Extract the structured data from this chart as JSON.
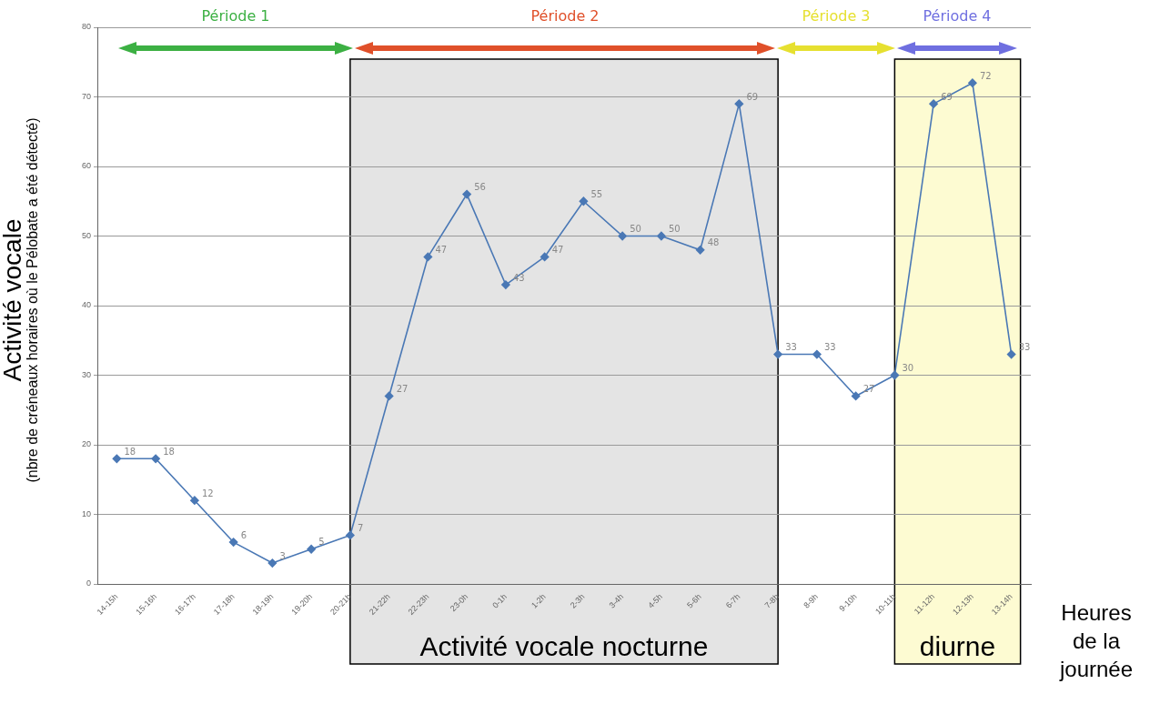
{
  "chart_data": {
    "type": "line",
    "ylabel": "Activité vocale",
    "subtitle": "(nbre de créneaux horaires où le Pélobate a été détecté)",
    "xlabel": "Heures de la journée",
    "categories": [
      "14-15h",
      "15-16h",
      "16-17h",
      "17-18h",
      "18-19h",
      "19-20h",
      "20-21h",
      "21-22h",
      "22-23h",
      "23-0h",
      "0-1h",
      "1-2h",
      "2-3h",
      "3-4h",
      "4-5h",
      "5-6h",
      "6-7h",
      "7-8h",
      "8-9h",
      "9-10h",
      "10-11h",
      "11-12h",
      "12-13h",
      "13-14h"
    ],
    "series": [
      {
        "color": "#4a78b5",
        "values": [
          18,
          18,
          12,
          6,
          3,
          5,
          7,
          27,
          47,
          56,
          43,
          47,
          55,
          50,
          50,
          48,
          69,
          33,
          33,
          27,
          30,
          69,
          72,
          33
        ]
      }
    ],
    "ylim": [
      0,
      80
    ],
    "yticks": [
      0,
      10,
      20,
      30,
      40,
      50,
      60,
      70,
      80
    ],
    "grid": "y",
    "legend": false,
    "marker": "diamond",
    "line_style": "solid",
    "data_labels": true,
    "bands": [
      {
        "axis": "x",
        "from": "20-21h",
        "to": "7-8h",
        "label": "Activité vocale nocturne",
        "color": "#e4e4e4"
      },
      {
        "axis": "x",
        "from": "10-11h",
        "to": "13-14h",
        "label": "diurne",
        "color": "#fdfbd2"
      }
    ],
    "annotations": [
      "Période 1",
      "Période 2",
      "Période 3",
      "Période 4"
    ]
  }
}
